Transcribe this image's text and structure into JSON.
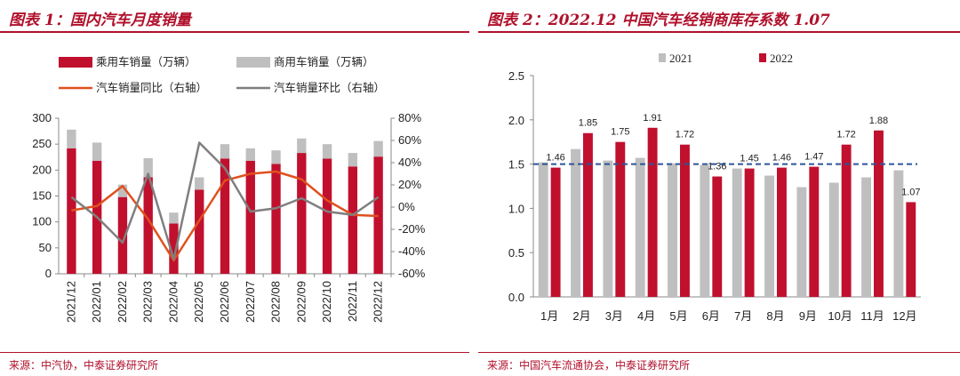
{
  "left": {
    "title": "图表 1：国内汽车月度销量",
    "source": "来源：中汽协，中泰证券研究所",
    "colors": {
      "passenger": "#c0102e",
      "commercial": "#bfbfbf",
      "yoy": "#e0501e",
      "mom": "#7f7f7f"
    },
    "chart_data": {
      "type": "bar",
      "categories": [
        "2021/12",
        "2022/01",
        "2022/02",
        "2022/03",
        "2022/04",
        "2022/05",
        "2022/06",
        "2022/07",
        "2022/08",
        "2022/09",
        "2022/10",
        "2022/11",
        "2022/12"
      ],
      "series": [
        {
          "name": "乘用车销量（万辆）",
          "axis": "left",
          "stack": "sales",
          "values": [
            242,
            218,
            148,
            186,
            97,
            162,
            222,
            218,
            212,
            233,
            222,
            207,
            226
          ]
        },
        {
          "name": "商用车销量（万辆）",
          "axis": "left",
          "stack": "sales",
          "values": [
            36,
            35,
            24,
            37,
            21,
            24,
            28,
            24,
            26,
            28,
            28,
            26,
            30
          ]
        },
        {
          "name": "汽车销量同比（右轴）",
          "axis": "right",
          "type": "line",
          "values": [
            -3,
            1,
            19,
            -11,
            -48,
            -12,
            24,
            30,
            32,
            25,
            6,
            -7,
            -8
          ]
        },
        {
          "name": "汽车销量环比（右轴）",
          "axis": "right",
          "type": "line",
          "values": [
            9,
            -9,
            -32,
            30,
            -47,
            58,
            35,
            -4,
            -1,
            8,
            -4,
            -7,
            9
          ]
        }
      ],
      "yleft": {
        "min": 0,
        "max": 300,
        "ticks": [
          0,
          50,
          100,
          150,
          200,
          250,
          300
        ]
      },
      "yright": {
        "min": -60,
        "max": 80,
        "ticks": [
          -60,
          -40,
          -20,
          0,
          20,
          40,
          60,
          80
        ],
        "tick_labels": [
          "-60%",
          "-40%",
          "-20%",
          "0%",
          "20%",
          "40%",
          "60%",
          "80%"
        ]
      },
      "legend": [
        "乘用车销量（万辆）",
        "商用车销量（万辆）",
        "汽车销量同比（右轴）",
        "汽车销量环比（右轴）"
      ],
      "legend_position": "top"
    }
  },
  "right": {
    "title": "图表 2：2022.12 中国汽车经销商库存系数 1.07",
    "source": "来源：中国汽车流通协会，中泰证券研究所",
    "colors": {
      "y2021": "#bfbfbf",
      "y2022": "#c0102e",
      "warning": "#2e5597"
    },
    "chart_data": {
      "type": "bar",
      "categories": [
        "1月",
        "2月",
        "3月",
        "4月",
        "5月",
        "6月",
        "7月",
        "8月",
        "9月",
        "10月",
        "11月",
        "12月"
      ],
      "series": [
        {
          "name": "2021",
          "values": [
            1.52,
            1.67,
            1.54,
            1.57,
            1.51,
            1.49,
            1.45,
            1.37,
            1.24,
            1.29,
            1.35,
            1.43
          ]
        },
        {
          "name": "2022",
          "values": [
            1.46,
            1.85,
            1.75,
            1.91,
            1.72,
            1.36,
            1.45,
            1.46,
            1.47,
            1.72,
            1.88,
            1.07
          ]
        }
      ],
      "data_labels": [
        "1.46",
        "1.85",
        "1.75",
        "1.91",
        "1.72",
        "1.36",
        "1.45",
        "1.46",
        "1.47",
        "1.72",
        "1.88",
        "1.07"
      ],
      "reference_line": 1.5,
      "ylim": [
        0,
        2.5
      ],
      "yticks": [
        0,
        0.5,
        1.0,
        1.5,
        2.0,
        2.5
      ],
      "ytick_labels": [
        "0.0",
        "0.5",
        "1.0",
        "1.5",
        "2.0",
        "2.5"
      ],
      "legend": [
        "2021",
        "2022"
      ],
      "legend_position": "top"
    }
  }
}
